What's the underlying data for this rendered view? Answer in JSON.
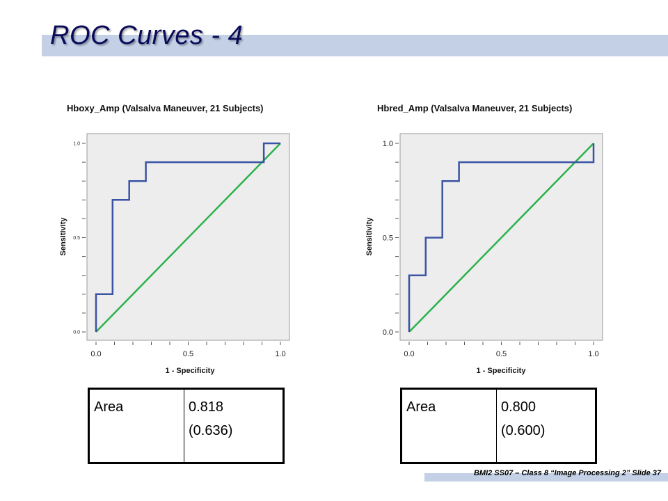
{
  "slide": {
    "title": "ROC Curves - 4",
    "footer": "BMI2 SS07 – Class 8 “Image Processing 2” Slide 37"
  },
  "colors": {
    "roc_curve": "#3a54a4",
    "reference_line": "#2ab24a",
    "plot_background": "#ededed",
    "title_bar": "#c3d0e6"
  },
  "chart_data": [
    {
      "type": "line",
      "title": "Hboxy_Amp (Valsalva Maneuver, 21 Subjects)",
      "xlabel": "1 - Specificity",
      "ylabel": "Sensitivity",
      "xlim": [
        0,
        1
      ],
      "ylim": [
        0,
        1
      ],
      "x_ticks": [
        "0.0",
        "0.5",
        "1.0"
      ],
      "y_ticks": [
        "0.0",
        "0.5",
        "1.0"
      ],
      "grid": false,
      "series": [
        {
          "role": "roc",
          "x": [
            0.0,
            0.0,
            0.09,
            0.09,
            0.18,
            0.18,
            0.27,
            0.27,
            0.91,
            0.91,
            1.0
          ],
          "y": [
            0.0,
            0.2,
            0.2,
            0.7,
            0.7,
            0.8,
            0.8,
            0.9,
            0.9,
            1.0,
            1.0
          ]
        },
        {
          "role": "reference",
          "x": [
            0.0,
            1.0
          ],
          "y": [
            0.0,
            1.0
          ]
        }
      ],
      "area_table": {
        "label": "Area",
        "value": "0.818",
        "value2": "(0.636)"
      }
    },
    {
      "type": "line",
      "title": "Hbred_Amp (Valsalva Maneuver, 21 Subjects)",
      "xlabel": "1 - Specificity",
      "ylabel": "Sensitivity",
      "xlim": [
        0,
        1
      ],
      "ylim": [
        0,
        1
      ],
      "x_ticks": [
        "0.0",
        "0.5",
        "1.0"
      ],
      "y_ticks": [
        "0.0",
        "0.5",
        "1.0"
      ],
      "grid": false,
      "series": [
        {
          "role": "roc",
          "x": [
            0.0,
            0.0,
            0.09,
            0.09,
            0.18,
            0.18,
            0.27,
            0.27,
            1.0,
            1.0
          ],
          "y": [
            0.0,
            0.3,
            0.3,
            0.5,
            0.5,
            0.8,
            0.8,
            0.9,
            0.9,
            1.0
          ]
        },
        {
          "role": "reference",
          "x": [
            0.0,
            1.0
          ],
          "y": [
            0.0,
            1.0
          ]
        }
      ],
      "area_table": {
        "label": "Area",
        "value": "0.800",
        "value2": "(0.600)"
      }
    }
  ]
}
